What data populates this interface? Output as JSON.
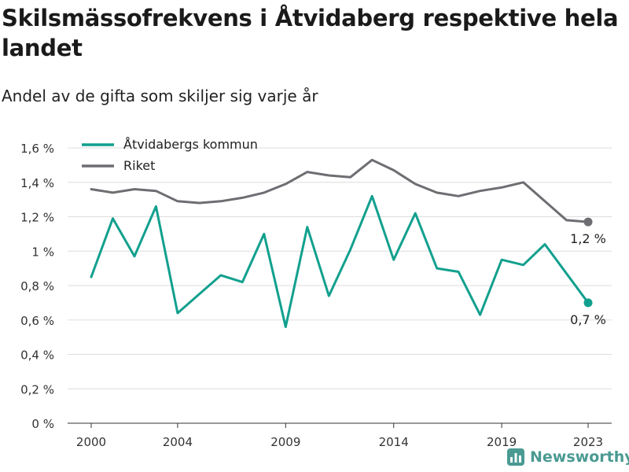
{
  "header": {
    "title": "Skilsmässofrekvens i Åtvidaberg respektive hela landet",
    "subtitle": "Andel av de gifta som skiljer sig varje år"
  },
  "brand": {
    "name": "Newsworthy"
  },
  "colors": {
    "kommun": "#12a08e",
    "riket": "#6e6d72",
    "grid": "#dddddd",
    "axis": "#333333"
  },
  "chart_data": {
    "type": "line",
    "title": "Skilsmässofrekvens i Åtvidaberg respektive hela landet",
    "subtitle": "Andel av de gifta som skiljer sig varje år",
    "x": [
      2000,
      2001,
      2002,
      2003,
      2004,
      2005,
      2006,
      2007,
      2008,
      2009,
      2010,
      2011,
      2012,
      2013,
      2014,
      2015,
      2016,
      2017,
      2018,
      2019,
      2020,
      2021,
      2022,
      2023
    ],
    "x_ticks": [
      "2000",
      "2004",
      "2009",
      "2014",
      "2019",
      "2023"
    ],
    "y_ticks": [
      "0 %",
      "0,2 %",
      "0,4 %",
      "0,6 %",
      "0,8 %",
      "1 %",
      "1,2 %",
      "1,4 %",
      "1,6 %"
    ],
    "ylim": [
      0,
      1.6
    ],
    "xlim": [
      2000,
      2023
    ],
    "grid": true,
    "legend_position": "top-left",
    "series": [
      {
        "name": "Åtvidabergs kommun",
        "color": "#12a08e",
        "values": [
          0.85,
          1.19,
          0.97,
          1.26,
          0.64,
          0.75,
          0.86,
          0.82,
          1.1,
          0.56,
          1.14,
          0.74,
          1.01,
          1.32,
          0.95,
          1.22,
          0.9,
          0.88,
          0.63,
          0.95,
          0.92,
          1.04,
          0.87,
          0.7
        ],
        "end_label": "0,7 %"
      },
      {
        "name": "Riket",
        "color": "#6e6d72",
        "values": [
          1.36,
          1.34,
          1.36,
          1.35,
          1.29,
          1.28,
          1.29,
          1.31,
          1.34,
          1.39,
          1.46,
          1.44,
          1.43,
          1.53,
          1.47,
          1.39,
          1.34,
          1.32,
          1.35,
          1.37,
          1.4,
          1.29,
          1.18,
          1.17
        ],
        "end_label": "1,2 %"
      }
    ]
  }
}
